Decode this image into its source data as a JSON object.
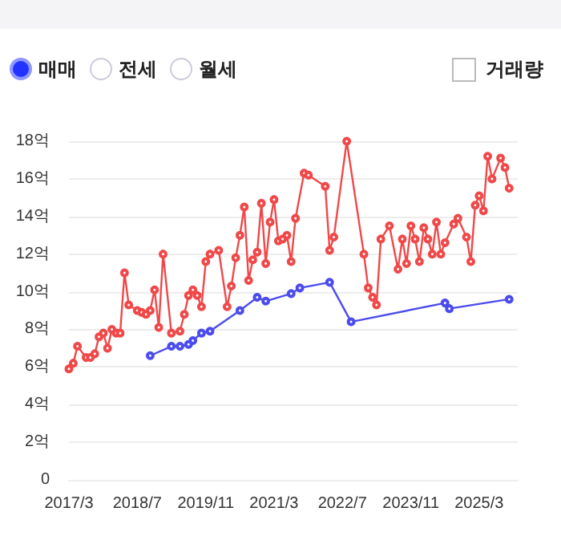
{
  "chart_data": {
    "type": "line",
    "annotations": [
      "매매",
      "전세",
      "월세",
      "거래량"
    ],
    "series": [
      {
        "color": "#f04848",
        "x": [
          "2017-03",
          "2017-04",
          "2017-05",
          "2017-07",
          "2017-08",
          "2017-09",
          "2017-10",
          "2017-11",
          "2017-12",
          "2018-01",
          "2018-02",
          "2018-03",
          "2018-04",
          "2018-05",
          "2018-07",
          "2018-08",
          "2018-09",
          "2018-10",
          "2018-11",
          "2018-12",
          "2019-01",
          "2019-03",
          "2019-05",
          "2019-06",
          "2019-07",
          "2019-08",
          "2019-09",
          "2019-10",
          "2019-11",
          "2019-12",
          "2020-02",
          "2020-04",
          "2020-05",
          "2020-06",
          "2020-07",
          "2020-08",
          "2020-09",
          "2020-10",
          "2020-11",
          "2020-12",
          "2021-01",
          "2021-02",
          "2021-03",
          "2021-04",
          "2021-05",
          "2021-06",
          "2021-07",
          "2021-08",
          "2021-10",
          "2021-11",
          "2022-03",
          "2022-04",
          "2022-05",
          "2022-08",
          "2022-12",
          "2023-01",
          "2023-02",
          "2023-03",
          "2023-04",
          "2023-06",
          "2023-08",
          "2023-09",
          "2023-10",
          "2023-11",
          "2023-12",
          "2024-01",
          "2024-02",
          "2024-03",
          "2024-04",
          "2024-05",
          "2024-06",
          "2024-07",
          "2024-09",
          "2024-10",
          "2024-12",
          "2025-01",
          "2025-02",
          "2025-03",
          "2025-04",
          "2025-05",
          "2025-06",
          "2025-08",
          "2025-09",
          "2025-10"
        ],
        "values": [
          5.9,
          6.2,
          7.1,
          6.5,
          6.5,
          6.7,
          7.6,
          7.8,
          7.0,
          8.0,
          7.8,
          7.8,
          11.0,
          9.3,
          9.0,
          8.9,
          8.8,
          9.0,
          10.1,
          8.1,
          12.0,
          7.8,
          7.9,
          8.8,
          9.8,
          10.1,
          9.8,
          9.2,
          11.6,
          12.0,
          12.2,
          9.2,
          10.3,
          11.8,
          13.0,
          14.5,
          10.6,
          11.7,
          12.1,
          14.7,
          11.5,
          13.7,
          14.9,
          12.7,
          12.8,
          13.0,
          11.6,
          13.9,
          16.3,
          16.2,
          15.6,
          12.2,
          12.9,
          18.0,
          12.0,
          10.2,
          9.7,
          9.3,
          12.8,
          13.5,
          11.2,
          12.8,
          11.5,
          13.5,
          12.8,
          11.6,
          13.4,
          12.8,
          12.0,
          13.7,
          12.0,
          12.6,
          13.6,
          13.9,
          12.9,
          11.6,
          14.6,
          15.1,
          14.3,
          17.2,
          16.0,
          17.1,
          16.6,
          15.5
        ]
      },
      {
        "color": "#4b4bef",
        "x": [
          "2018-10",
          "2019-03",
          "2019-05",
          "2019-07",
          "2019-08",
          "2019-10",
          "2019-12",
          "2020-07",
          "2020-11",
          "2021-01",
          "2021-07",
          "2021-09",
          "2022-04",
          "2022-09",
          "2024-07",
          "2024-08",
          "2025-10"
        ],
        "values": [
          6.6,
          7.1,
          7.1,
          7.2,
          7.4,
          7.8,
          7.9,
          9.0,
          9.7,
          9.5,
          9.9,
          10.2,
          10.5,
          8.4,
          9.4,
          9.1,
          9.6
        ]
      }
    ],
    "xlim": [
      "2017-03",
      "2025-12"
    ],
    "xticks": [
      {
        "value": "2017-03",
        "label": "2017/3"
      },
      {
        "value": "2018-07",
        "label": "2018/7"
      },
      {
        "value": "2019-11",
        "label": "2019/11"
      },
      {
        "value": "2021-03",
        "label": "2021/3"
      },
      {
        "value": "2022-07",
        "label": "2022/7"
      },
      {
        "value": "2023-11",
        "label": "2023/11"
      },
      {
        "value": "2025-03",
        "label": "2025/3"
      }
    ],
    "ylim": [
      0,
      18
    ],
    "yticks": [
      0,
      {
        "value": 2,
        "label": "2억"
      },
      {
        "value": 4,
        "label": "4억"
      },
      {
        "value": 6,
        "label": "6억"
      },
      {
        "value": 8,
        "label": "8억"
      },
      {
        "value": 10,
        "label": "10억"
      },
      {
        "value": 12,
        "label": "12억"
      },
      {
        "value": 14,
        "label": "14억"
      },
      {
        "value": 16,
        "label": "16억"
      },
      {
        "value": 18,
        "label": "18억"
      }
    ],
    "grid": "y",
    "marker": "circle",
    "line_style": "solid"
  }
}
